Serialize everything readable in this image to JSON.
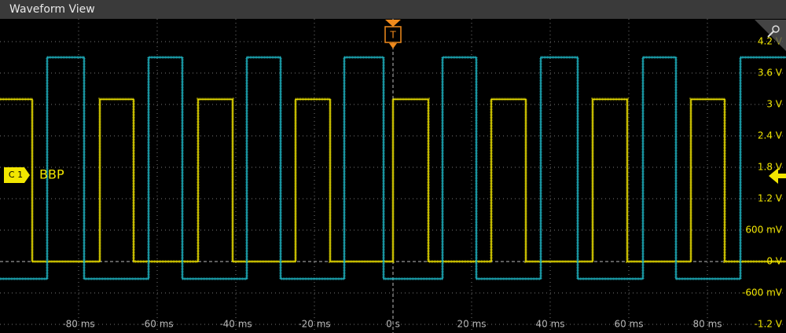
{
  "window_title": "Waveform View",
  "channel_badge": "C 1",
  "channel_label": "BBP",
  "trigger_label": "T",
  "chart_data": {
    "type": "line",
    "xlim": [
      -100,
      100
    ],
    "ylim": [
      -1.365,
      4.635
    ],
    "grid": true,
    "xticks": [
      {
        "value": -80,
        "label": "-80 ms"
      },
      {
        "value": -60,
        "label": "-60 ms"
      },
      {
        "value": -40,
        "label": "-40 ms"
      },
      {
        "value": -20,
        "label": "-20 ms"
      },
      {
        "value": 0,
        "label": "0 s"
      },
      {
        "value": 20,
        "label": "20 ms"
      },
      {
        "value": 40,
        "label": "40 ms"
      },
      {
        "value": 60,
        "label": "60 ms"
      },
      {
        "value": 80,
        "label": "80 ms"
      }
    ],
    "yticks": [
      {
        "value": 4.2,
        "label": "4.2 V"
      },
      {
        "value": 3.6,
        "label": "3.6 V"
      },
      {
        "value": 3,
        "label": "3 V"
      },
      {
        "value": 2.4,
        "label": "2.4 V"
      },
      {
        "value": 1.8,
        "label": "1.8 V"
      },
      {
        "value": 1.2,
        "label": "1.2 V"
      },
      {
        "value": 0.6,
        "label": "600 mV"
      },
      {
        "value": 0,
        "label": "0 V"
      },
      {
        "value": -0.6,
        "label": "-600 mV"
      },
      {
        "value": -1.2,
        "label": "-1.2 V"
      }
    ],
    "series": [
      {
        "color": "#f2e600",
        "x": [
          -100,
          -91.8,
          -91.8,
          -74.6,
          -74.6,
          -66,
          -66,
          -49.6,
          -49.6,
          -40.8,
          -40.8,
          -24.8,
          -24.8,
          -16,
          -16,
          0,
          0,
          9,
          9,
          25,
          25,
          33.8,
          33.8,
          50.8,
          50.8,
          59.6,
          59.6,
          75.8,
          75.8,
          84.4,
          84.4,
          100
        ],
        "values": [
          3.1,
          3.1,
          0,
          0,
          3.1,
          3.1,
          0,
          0,
          3.1,
          3.1,
          0,
          0,
          3.1,
          3.1,
          0,
          0,
          3.1,
          3.1,
          0,
          0,
          3.1,
          3.1,
          0,
          0,
          3.1,
          3.1,
          0,
          0,
          3.1,
          3.1,
          0,
          0
        ]
      },
      {
        "color": "#1fb5c4",
        "x": [
          -100,
          -88,
          -88,
          -78.6,
          -78.6,
          -62.2,
          -62.2,
          -53.6,
          -53.6,
          -37.2,
          -37.2,
          -28.6,
          -28.6,
          -12.4,
          -12.4,
          -2.4,
          -2.4,
          12.6,
          12.6,
          21.2,
          21.2,
          37.6,
          37.6,
          47,
          47,
          63.6,
          63.6,
          72,
          72,
          88.4,
          88.4,
          100
        ],
        "values": [
          -0.33,
          -0.33,
          3.9,
          3.9,
          -0.33,
          -0.33,
          3.9,
          3.9,
          -0.33,
          -0.33,
          3.9,
          3.9,
          -0.33,
          -0.33,
          3.9,
          3.9,
          -0.33,
          -0.33,
          3.9,
          3.9,
          -0.33,
          -0.33,
          3.9,
          3.9,
          -0.33,
          -0.33,
          3.9,
          3.9,
          -0.33,
          -0.33,
          3.9,
          3.9
        ]
      }
    ]
  }
}
